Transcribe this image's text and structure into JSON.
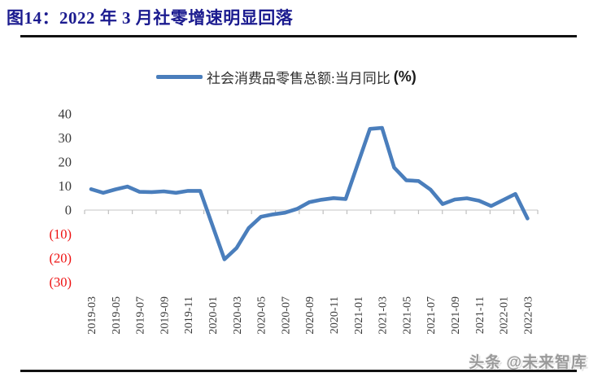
{
  "header": {
    "title": "图14：2022 年 3 月社零增速明显回落"
  },
  "legend": {
    "label": "社会消费品零售总额:当月同比",
    "unit": "(%)"
  },
  "watermark": {
    "text": "头条 @未来智库"
  },
  "chart_data": {
    "type": "line",
    "title": "",
    "xlabel": "",
    "ylabel": "",
    "ylim": [
      -30,
      40
    ],
    "grid": false,
    "legend_position": "top",
    "series": [
      {
        "name": "社会消费品零售总额:当月同比(%)",
        "x": [
          "2019-03",
          "2019-04",
          "2019-05",
          "2019-06",
          "2019-07",
          "2019-08",
          "2019-09",
          "2019-10",
          "2019-11",
          "2019-12",
          "2020-02",
          "2020-03",
          "2020-04",
          "2020-05",
          "2020-06",
          "2020-07",
          "2020-08",
          "2020-09",
          "2020-10",
          "2020-11",
          "2020-12",
          "2021-02",
          "2021-03",
          "2021-04",
          "2021-05",
          "2021-06",
          "2021-07",
          "2021-08",
          "2021-09",
          "2021-10",
          "2021-11",
          "2021-12",
          "2022-02",
          "2022-03"
        ],
        "values": [
          8.7,
          7.2,
          8.6,
          9.8,
          7.6,
          7.5,
          7.8,
          7.2,
          8.0,
          8.0,
          -20.5,
          -15.8,
          -7.5,
          -2.8,
          -1.8,
          -1.1,
          0.5,
          3.3,
          4.3,
          5.0,
          4.6,
          33.8,
          34.2,
          17.7,
          12.4,
          12.1,
          8.5,
          2.5,
          4.4,
          4.9,
          3.9,
          1.7,
          6.7,
          -3.5
        ]
      }
    ],
    "x_tick_labels": [
      "2019-03",
      "2019-05",
      "2019-07",
      "2019-09",
      "2019-11",
      "2020-01",
      "2020-03",
      "2020-05",
      "2020-07",
      "2020-09",
      "2020-11",
      "2021-01",
      "2021-03",
      "2021-05",
      "2021-07",
      "2021-09",
      "2021-11",
      "2022-01",
      "2022-03"
    ],
    "y_ticks": [
      {
        "value": 40,
        "label": "40"
      },
      {
        "value": 30,
        "label": "30"
      },
      {
        "value": 20,
        "label": "20"
      },
      {
        "value": 10,
        "label": "10"
      },
      {
        "value": 0,
        "label": "0"
      },
      {
        "value": -10,
        "label": "(10)"
      },
      {
        "value": -20,
        "label": "(20)"
      },
      {
        "value": -30,
        "label": "(30)"
      }
    ],
    "colors": {
      "line": "#4a7ebc",
      "axis_line": "#d9d9d9",
      "tick_mark": "#bfbfbf",
      "tick_label": "#3a3a3a",
      "negative_tick_label": "#ee1111",
      "title": "#1b1b8f"
    }
  }
}
